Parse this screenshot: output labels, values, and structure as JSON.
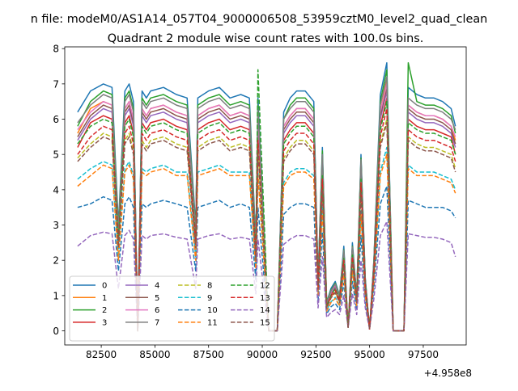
{
  "figure": {
    "suptitle": "n file: modeM0/AS1A14_057T04_9000006508_53959cztM0_level2_quad_clean",
    "title": "Quadrant 2 module wise count rates with 100.0s bins.",
    "offset_label": "+4.958e8"
  },
  "chart_data": {
    "type": "line",
    "title": "Quadrant 2 module wise count rates with 100.0s bins.",
    "xlabel": "",
    "ylabel": "",
    "x_offset": 495800000,
    "xlim": [
      80800,
      99500
    ],
    "ylim": [
      -0.4,
      8.05
    ],
    "xticks": [
      82500,
      85000,
      87500,
      90000,
      92500,
      95000,
      97500
    ],
    "yticks": [
      0,
      1,
      2,
      3,
      4,
      5,
      6,
      7,
      8
    ],
    "x": [
      81400,
      82000,
      82600,
      83000,
      83300,
      83600,
      83800,
      84000,
      84200,
      84400,
      84600,
      84800,
      85400,
      86000,
      86500,
      86900,
      87000,
      87500,
      88000,
      88500,
      89000,
      89400,
      89700,
      89800,
      90300,
      90400,
      90700,
      91000,
      91300,
      91600,
      92000,
      92400,
      92600,
      92800,
      93000,
      93200,
      93400,
      93600,
      93800,
      94000,
      94200,
      94400,
      94600,
      94800,
      95000,
      95200,
      95500,
      95800,
      96100,
      96400,
      96600,
      96800,
      97200,
      97600,
      98000,
      98400,
      98800,
      99000
    ],
    "legend": {
      "position": "lower left",
      "columns": 4
    },
    "series": [
      {
        "name": "0",
        "color": "#1f77b4",
        "dash": "solid",
        "values": [
          6.2,
          6.8,
          7.0,
          6.9,
          3.0,
          6.8,
          7.0,
          6.5,
          0.0,
          6.8,
          6.6,
          6.8,
          6.9,
          6.7,
          6.6,
          3.0,
          6.6,
          6.8,
          6.9,
          6.6,
          6.7,
          6.6,
          2.5,
          6.6,
          0.0,
          0.0,
          0.0,
          6.2,
          6.6,
          6.8,
          6.8,
          6.5,
          1.5,
          5.2,
          0.8,
          1.2,
          1.4,
          1.0,
          2.4,
          0.1,
          2.5,
          1.0,
          5.0,
          1.5,
          0.05,
          2.0,
          6.7,
          7.6,
          0.0,
          0.0,
          0.0,
          6.9,
          6.7,
          6.6,
          6.6,
          6.5,
          6.3,
          5.8
        ]
      },
      {
        "name": "1",
        "color": "#ff7f0e",
        "dash": "solid",
        "values": [
          5.6,
          6.3,
          6.5,
          6.4,
          2.8,
          6.3,
          6.5,
          6.0,
          0.0,
          6.3,
          6.1,
          6.3,
          6.4,
          6.2,
          6.1,
          2.8,
          6.1,
          6.3,
          6.4,
          6.1,
          6.2,
          6.1,
          2.3,
          6.1,
          0.0,
          0.0,
          0.0,
          5.8,
          6.1,
          6.3,
          6.3,
          6.0,
          1.4,
          4.8,
          0.75,
          1.1,
          1.3,
          0.95,
          2.2,
          0.1,
          2.3,
          0.95,
          4.7,
          1.4,
          0.05,
          1.9,
          6.2,
          7.1,
          0.0,
          0.0,
          0.0,
          6.4,
          6.2,
          6.1,
          6.1,
          6.0,
          5.8,
          5.4
        ]
      },
      {
        "name": "2",
        "color": "#2ca02c",
        "dash": "solid",
        "values": [
          5.8,
          6.5,
          6.8,
          6.7,
          2.9,
          6.6,
          6.8,
          6.3,
          0.0,
          6.6,
          6.4,
          6.6,
          6.7,
          6.5,
          6.4,
          2.9,
          6.4,
          6.6,
          6.7,
          6.4,
          6.5,
          6.4,
          2.4,
          6.4,
          0.0,
          0.0,
          0.0,
          6.0,
          6.4,
          6.6,
          6.6,
          6.3,
          1.45,
          5.1,
          0.8,
          1.15,
          1.35,
          1.0,
          2.3,
          0.1,
          2.4,
          1.0,
          4.9,
          1.45,
          0.05,
          1.95,
          6.5,
          7.4,
          0.0,
          0.0,
          0.0,
          7.6,
          6.5,
          6.4,
          6.4,
          6.3,
          6.1,
          5.6
        ]
      },
      {
        "name": "3",
        "color": "#d62728",
        "dash": "solid",
        "values": [
          5.2,
          5.9,
          6.1,
          6.0,
          2.6,
          5.9,
          6.1,
          5.6,
          0.0,
          5.9,
          5.7,
          5.9,
          6.0,
          5.8,
          5.7,
          2.6,
          5.7,
          5.9,
          6.0,
          5.7,
          5.8,
          5.7,
          2.2,
          5.7,
          0.0,
          0.0,
          0.0,
          5.4,
          5.7,
          5.9,
          5.9,
          5.6,
          1.3,
          4.5,
          0.7,
          1.05,
          1.2,
          0.9,
          2.1,
          0.1,
          2.2,
          0.9,
          4.4,
          1.3,
          0.05,
          1.8,
          5.8,
          6.6,
          0.0,
          0.0,
          0.0,
          6.0,
          5.8,
          5.7,
          5.7,
          5.6,
          5.5,
          5.0
        ]
      },
      {
        "name": "4",
        "color": "#9467bd",
        "dash": "solid",
        "values": [
          5.4,
          6.0,
          6.3,
          6.2,
          2.7,
          6.1,
          6.3,
          5.8,
          0.0,
          6.1,
          5.9,
          6.1,
          6.2,
          6.0,
          5.9,
          2.7,
          5.9,
          6.1,
          6.2,
          5.9,
          6.0,
          5.9,
          2.3,
          5.9,
          0.0,
          0.0,
          0.0,
          5.6,
          5.9,
          6.1,
          6.1,
          5.8,
          1.35,
          4.6,
          0.72,
          1.08,
          1.25,
          0.92,
          2.15,
          0.1,
          2.25,
          0.92,
          4.5,
          1.35,
          0.05,
          1.85,
          6.0,
          6.8,
          0.0,
          0.0,
          0.0,
          6.2,
          6.0,
          5.9,
          5.9,
          5.8,
          5.6,
          5.2
        ]
      },
      {
        "name": "5",
        "color": "#8c564b",
        "dash": "solid",
        "values": [
          5.5,
          6.1,
          6.4,
          6.3,
          2.7,
          6.2,
          6.4,
          5.9,
          0.0,
          6.2,
          6.0,
          6.2,
          6.3,
          6.1,
          6.0,
          2.7,
          6.0,
          6.2,
          6.3,
          6.0,
          6.1,
          6.0,
          2.3,
          6.0,
          0.0,
          0.0,
          0.0,
          5.7,
          6.0,
          6.2,
          6.2,
          5.9,
          1.38,
          4.7,
          0.74,
          1.1,
          1.28,
          0.94,
          2.18,
          0.1,
          2.28,
          0.94,
          4.6,
          1.38,
          0.05,
          1.88,
          6.1,
          6.9,
          0.0,
          0.0,
          0.0,
          6.3,
          6.1,
          6.0,
          6.0,
          5.9,
          5.7,
          5.3
        ]
      },
      {
        "name": "6",
        "color": "#e377c2",
        "dash": "solid",
        "values": [
          5.7,
          6.2,
          6.5,
          6.4,
          2.75,
          6.3,
          6.5,
          6.0,
          0.0,
          6.3,
          6.1,
          6.3,
          6.4,
          6.2,
          6.1,
          2.75,
          6.1,
          6.3,
          6.4,
          6.1,
          6.2,
          6.1,
          2.35,
          6.1,
          0.0,
          0.0,
          0.0,
          5.8,
          6.1,
          6.3,
          6.3,
          6.0,
          1.4,
          4.8,
          0.75,
          1.1,
          1.3,
          0.95,
          2.2,
          0.1,
          2.3,
          0.95,
          4.7,
          1.4,
          0.05,
          1.9,
          6.2,
          7.0,
          0.0,
          0.0,
          0.0,
          6.4,
          6.2,
          6.1,
          6.1,
          6.0,
          5.8,
          5.5
        ]
      },
      {
        "name": "7",
        "color": "#7f7f7f",
        "dash": "solid",
        "values": [
          5.9,
          6.4,
          6.7,
          6.6,
          2.85,
          6.5,
          6.7,
          6.2,
          0.0,
          6.5,
          6.3,
          6.5,
          6.6,
          6.4,
          6.3,
          2.85,
          6.3,
          6.5,
          6.6,
          6.3,
          6.4,
          6.3,
          2.4,
          6.3,
          0.0,
          0.0,
          0.0,
          6.0,
          6.3,
          6.5,
          6.5,
          6.2,
          1.45,
          5.0,
          0.78,
          1.13,
          1.33,
          0.98,
          2.28,
          0.1,
          2.38,
          0.98,
          4.85,
          1.45,
          0.05,
          1.95,
          6.4,
          7.2,
          0.0,
          0.0,
          0.0,
          6.6,
          6.4,
          6.3,
          6.3,
          6.2,
          6.0,
          5.7
        ]
      },
      {
        "name": "8",
        "color": "#bcbd22",
        "dash": "dashed",
        "values": [
          4.9,
          5.3,
          5.6,
          5.5,
          2.4,
          5.4,
          5.6,
          5.1,
          0.0,
          5.4,
          5.2,
          5.4,
          5.5,
          5.3,
          5.2,
          2.4,
          5.2,
          5.4,
          5.5,
          5.2,
          5.3,
          5.2,
          2.05,
          5.2,
          0.0,
          0.0,
          0.0,
          4.9,
          5.2,
          5.4,
          5.4,
          5.1,
          1.2,
          4.1,
          0.65,
          0.95,
          1.1,
          0.82,
          1.9,
          0.1,
          2.0,
          0.82,
          4.0,
          1.2,
          0.05,
          1.65,
          5.3,
          6.0,
          0.0,
          0.0,
          0.0,
          5.5,
          5.3,
          5.2,
          5.2,
          5.1,
          5.0,
          4.6
        ]
      },
      {
        "name": "9",
        "color": "#17becf",
        "dash": "dashed",
        "values": [
          4.3,
          4.6,
          4.8,
          4.7,
          2.1,
          4.6,
          4.8,
          4.4,
          0.0,
          4.6,
          4.5,
          4.6,
          4.7,
          4.5,
          4.5,
          2.1,
          4.5,
          4.6,
          4.7,
          4.5,
          4.5,
          4.5,
          1.8,
          4.5,
          0.0,
          0.0,
          0.0,
          4.2,
          4.5,
          4.6,
          4.6,
          4.4,
          1.05,
          3.5,
          0.58,
          0.82,
          0.95,
          0.72,
          1.65,
          0.1,
          1.75,
          0.72,
          3.4,
          1.05,
          0.05,
          1.45,
          4.5,
          5.2,
          0.0,
          0.0,
          0.0,
          4.7,
          4.5,
          4.5,
          4.5,
          4.4,
          4.3,
          4.0
        ]
      },
      {
        "name": "10",
        "color": "#1f77b4",
        "dash": "dashed",
        "values": [
          3.5,
          3.6,
          3.8,
          3.7,
          1.7,
          3.6,
          3.8,
          3.5,
          0.0,
          3.6,
          3.5,
          3.6,
          3.7,
          3.6,
          3.5,
          1.7,
          3.5,
          3.6,
          3.7,
          3.5,
          3.6,
          3.5,
          1.45,
          3.5,
          0.0,
          0.0,
          0.0,
          3.3,
          3.5,
          3.6,
          3.6,
          3.5,
          0.85,
          2.8,
          0.48,
          0.68,
          0.78,
          0.6,
          1.35,
          0.1,
          1.4,
          0.6,
          2.7,
          0.85,
          0.05,
          1.2,
          3.6,
          4.1,
          0.0,
          0.0,
          0.0,
          3.7,
          3.6,
          3.5,
          3.5,
          3.5,
          3.4,
          3.2
        ]
      },
      {
        "name": "11",
        "color": "#ff7f0e",
        "dash": "dashed",
        "values": [
          4.1,
          4.4,
          4.7,
          4.6,
          2.0,
          4.5,
          4.7,
          4.3,
          0.0,
          4.5,
          4.4,
          4.5,
          4.6,
          4.4,
          4.4,
          2.0,
          4.4,
          4.5,
          4.6,
          4.4,
          4.4,
          4.4,
          1.75,
          4.4,
          0.0,
          0.0,
          0.0,
          4.1,
          4.4,
          4.5,
          4.5,
          4.3,
          1.02,
          3.4,
          0.56,
          0.8,
          0.92,
          0.7,
          1.6,
          0.1,
          1.7,
          0.7,
          3.3,
          1.02,
          0.05,
          1.4,
          4.4,
          5.0,
          0.0,
          0.0,
          0.0,
          4.6,
          4.4,
          4.4,
          4.4,
          4.3,
          4.2,
          3.9
        ]
      },
      {
        "name": "12",
        "color": "#2ca02c",
        "dash": "dashed",
        "values": [
          5.3,
          5.8,
          6.0,
          5.9,
          2.55,
          5.8,
          6.0,
          5.5,
          0.0,
          5.8,
          5.6,
          5.8,
          5.9,
          5.7,
          5.6,
          2.55,
          5.6,
          5.8,
          5.9,
          5.6,
          5.7,
          5.6,
          2.15,
          7.4,
          0.0,
          0.0,
          0.0,
          5.3,
          5.6,
          5.8,
          5.8,
          5.5,
          1.3,
          4.4,
          0.7,
          1.0,
          1.2,
          0.88,
          2.05,
          0.1,
          2.15,
          0.88,
          4.3,
          1.3,
          0.05,
          1.75,
          5.7,
          6.5,
          0.0,
          0.0,
          0.0,
          5.9,
          5.7,
          5.6,
          5.6,
          5.5,
          5.4,
          5.0
        ]
      },
      {
        "name": "13",
        "color": "#d62728",
        "dash": "dashed",
        "values": [
          5.0,
          5.5,
          5.8,
          5.7,
          2.45,
          5.6,
          5.8,
          5.3,
          0.0,
          5.6,
          5.4,
          5.6,
          5.7,
          5.5,
          5.4,
          2.45,
          5.4,
          5.6,
          5.7,
          5.4,
          5.5,
          5.4,
          2.1,
          5.4,
          0.0,
          0.0,
          0.0,
          5.1,
          5.4,
          5.6,
          5.6,
          5.3,
          1.25,
          4.3,
          0.68,
          0.98,
          1.15,
          0.86,
          2.0,
          0.1,
          2.1,
          0.86,
          4.2,
          1.25,
          0.05,
          1.7,
          5.5,
          6.3,
          0.0,
          0.0,
          0.0,
          5.7,
          5.5,
          5.4,
          5.4,
          5.3,
          5.2,
          4.8
        ]
      },
      {
        "name": "14",
        "color": "#9467bd",
        "dash": "dashed",
        "values": [
          2.4,
          2.7,
          2.8,
          2.75,
          1.2,
          2.7,
          2.85,
          2.6,
          0.0,
          2.7,
          2.6,
          2.7,
          2.75,
          2.65,
          2.6,
          1.2,
          2.6,
          2.7,
          2.75,
          2.6,
          2.65,
          2.6,
          1.05,
          2.6,
          0.0,
          0.0,
          0.0,
          2.45,
          2.6,
          2.7,
          2.7,
          2.6,
          0.65,
          2.1,
          0.38,
          0.52,
          0.6,
          0.46,
          1.0,
          0.1,
          1.05,
          0.46,
          2.0,
          0.65,
          0.05,
          0.9,
          2.7,
          3.1,
          0.0,
          0.0,
          0.0,
          2.75,
          2.7,
          2.65,
          2.65,
          2.6,
          2.5,
          2.1
        ]
      },
      {
        "name": "15",
        "color": "#8c564b",
        "dash": "dashed",
        "values": [
          4.8,
          5.2,
          5.5,
          5.4,
          2.35,
          5.3,
          5.5,
          5.0,
          0.0,
          5.3,
          5.1,
          5.3,
          5.4,
          5.2,
          5.1,
          2.35,
          5.1,
          5.3,
          5.4,
          5.1,
          5.2,
          5.1,
          2.0,
          5.1,
          0.0,
          0.0,
          0.0,
          4.8,
          5.1,
          5.3,
          5.3,
          5.0,
          1.18,
          4.0,
          0.64,
          0.93,
          1.08,
          0.8,
          1.85,
          0.1,
          1.95,
          0.8,
          3.9,
          1.18,
          0.05,
          1.6,
          5.2,
          5.9,
          0.0,
          0.0,
          0.0,
          5.4,
          5.2,
          5.1,
          5.1,
          5.0,
          4.9,
          4.5
        ]
      }
    ]
  }
}
